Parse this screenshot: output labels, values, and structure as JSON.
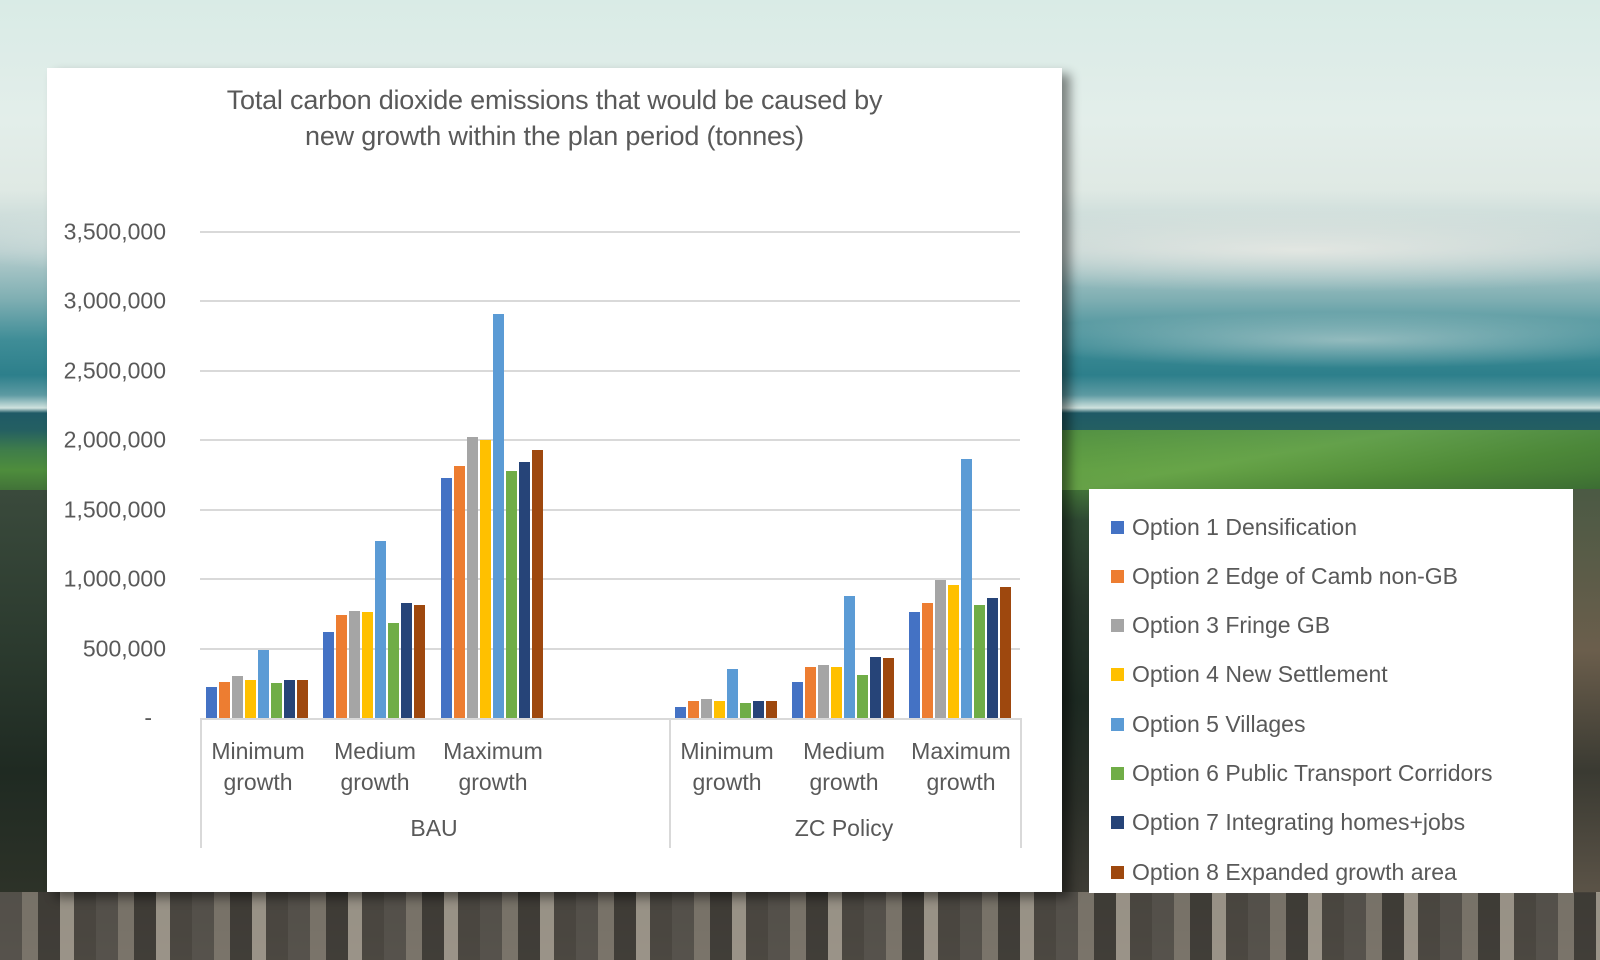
{
  "chart_data": {
    "type": "bar",
    "title": "Total carbon dioxide emissions that would be caused by new growth within the plan period (tonnes)",
    "title_lines": [
      "Total carbon dioxide emissions that would be caused by",
      "new growth within the plan period (tonnes)"
    ],
    "xlabel": "",
    "ylabel": "",
    "ylim": [
      0,
      3500000
    ],
    "y_ticks": [
      0,
      500000,
      1000000,
      1500000,
      2000000,
      2500000,
      3000000,
      3500000
    ],
    "y_tick_labels": [
      "-",
      "500,000",
      "1,000,000",
      "1,500,000",
      "2,000,000",
      "2,500,000",
      "3,000,000",
      "3,500,000"
    ],
    "grid": true,
    "legend_position": "right",
    "groups": [
      {
        "label": "BAU",
        "categories": [
          "Minimum growth",
          "Medium growth",
          "Maximum growth"
        ]
      },
      {
        "label": "ZC Policy",
        "categories": [
          "Minimum growth",
          "Medium growth",
          "Maximum growth"
        ]
      }
    ],
    "categories": [
      "BAU - Minimum growth",
      "BAU - Medium growth",
      "BAU - Maximum growth",
      "ZC Policy - Minimum growth",
      "ZC Policy - Medium growth",
      "ZC Policy - Maximum growth"
    ],
    "category_lines": [
      [
        "Minimum",
        "growth"
      ],
      [
        "Medium",
        "growth"
      ],
      [
        "Maximum",
        "growth"
      ],
      [
        "Minimum",
        "growth"
      ],
      [
        "Medium",
        "growth"
      ],
      [
        "Maximum",
        "growth"
      ]
    ],
    "series": [
      {
        "name": "Option 1 Densification",
        "color": "#4472c4",
        "values": [
          220000,
          620000,
          1730000,
          80000,
          260000,
          760000
        ]
      },
      {
        "name": "Option 2 Edge of Camb non-GB",
        "color": "#ed7d31",
        "values": [
          260000,
          740000,
          1810000,
          120000,
          370000,
          830000
        ]
      },
      {
        "name": "Option 3 Fringe GB",
        "color": "#a5a5a5",
        "values": [
          300000,
          770000,
          2020000,
          140000,
          380000,
          990000
        ]
      },
      {
        "name": "Option 4 New Settlement",
        "color": "#ffc000",
        "values": [
          270000,
          760000,
          2000000,
          120000,
          370000,
          960000
        ]
      },
      {
        "name": "Option 5 Villages",
        "color": "#5b9bd5",
        "values": [
          490000,
          1270000,
          2910000,
          350000,
          880000,
          1860000
        ]
      },
      {
        "name": "Option 6 Public Transport Corridors",
        "color": "#70ad47",
        "values": [
          250000,
          680000,
          1780000,
          110000,
          310000,
          810000
        ]
      },
      {
        "name": "Option 7 Integrating homes+jobs",
        "color": "#264478",
        "values": [
          270000,
          830000,
          1840000,
          120000,
          440000,
          860000
        ]
      },
      {
        "name": "Option 8 Expanded growth area",
        "color": "#9e480e",
        "values": [
          270000,
          810000,
          1930000,
          120000,
          430000,
          940000
        ]
      }
    ]
  }
}
